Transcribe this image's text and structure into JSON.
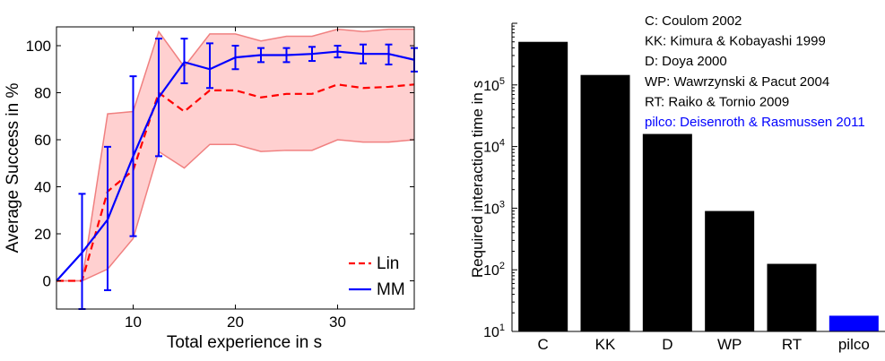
{
  "chart_data": [
    {
      "type": "line",
      "xlabel": "Total experience in s",
      "ylabel": "Average Success in %",
      "xlim": [
        2.5,
        37.5
      ],
      "ylim": [
        -12,
        108
      ],
      "xticks": [
        10,
        20,
        30
      ],
      "yticks": [
        0,
        20,
        40,
        60,
        80,
        100
      ],
      "legend_position": "bottom-right",
      "grid": false,
      "series": [
        {
          "name": "Lin",
          "color": "#ff0000",
          "style": "dashed",
          "x": [
            2.5,
            5,
            7.5,
            10,
            12.5,
            15,
            17.5,
            20,
            22.5,
            25,
            27.5,
            30,
            32.5,
            35,
            37.5
          ],
          "y": [
            0,
            0,
            38,
            47,
            80,
            72,
            81,
            81,
            78,
            79.5,
            79.5,
            83.5,
            82,
            82.5,
            83.5
          ],
          "band_upper": [
            0,
            0,
            71,
            72,
            106,
            91,
            105,
            105,
            102,
            104,
            104,
            107,
            106,
            107,
            107
          ],
          "band_lower": [
            0,
            0,
            5,
            18,
            55,
            48,
            58,
            58,
            55,
            55.5,
            55.5,
            60,
            59,
            59,
            60
          ],
          "band_color": "#ffd0d0",
          "band_edge_color": "#f08080"
        },
        {
          "name": "MM",
          "color": "#0000ff",
          "style": "solid",
          "x": [
            2.5,
            5,
            7.5,
            10,
            12.5,
            15,
            17.5,
            20,
            22.5,
            25,
            27.5,
            30,
            32.5,
            35,
            37.5
          ],
          "y": [
            0,
            12,
            26,
            53,
            78,
            93,
            90,
            95,
            96,
            96,
            96.5,
            97.5,
            96.5,
            96.5,
            94
          ],
          "err_upper": [
            null,
            37,
            57,
            87,
            103,
            103,
            101,
            100,
            99,
            99,
            99.5,
            100,
            100.5,
            100.5,
            99
          ],
          "err_lower": [
            null,
            -12,
            -4,
            19,
            53,
            84,
            82,
            90,
            93,
            93,
            93.5,
            95,
            92.5,
            92,
            89
          ]
        }
      ]
    },
    {
      "type": "bar",
      "yscale": "log",
      "ylabel": "Required interaction time in s",
      "xlabel": "",
      "categories": [
        "C",
        "KK",
        "D",
        "WP",
        "RT",
        "pilco"
      ],
      "values": [
        500000,
        145000,
        16000,
        900,
        125,
        18
      ],
      "bar_colors": [
        "#000000",
        "#000000",
        "#000000",
        "#000000",
        "#000000",
        "#0000ff"
      ],
      "ylim": [
        10,
        1000000
      ],
      "yticks": [
        {
          "base": "10",
          "exp": "1"
        },
        {
          "base": "10",
          "exp": "2"
        },
        {
          "base": "10",
          "exp": "3"
        },
        {
          "base": "10",
          "exp": "4"
        },
        {
          "base": "10",
          "exp": "5"
        }
      ],
      "annotations": [
        {
          "text": "C: Coulom 2002",
          "color": "#000000"
        },
        {
          "text": "KK: Kimura & Kobayashi 1999",
          "color": "#000000"
        },
        {
          "text": "D: Doya 2000",
          "color": "#000000"
        },
        {
          "text": "WP: Wawrzynski & Pacut 2004",
          "color": "#000000"
        },
        {
          "text": "RT: Raiko & Tornio 2009",
          "color": "#000000"
        },
        {
          "text": "pilco: Deisenroth & Rasmussen 2011",
          "color": "#0000ff"
        }
      ]
    }
  ]
}
